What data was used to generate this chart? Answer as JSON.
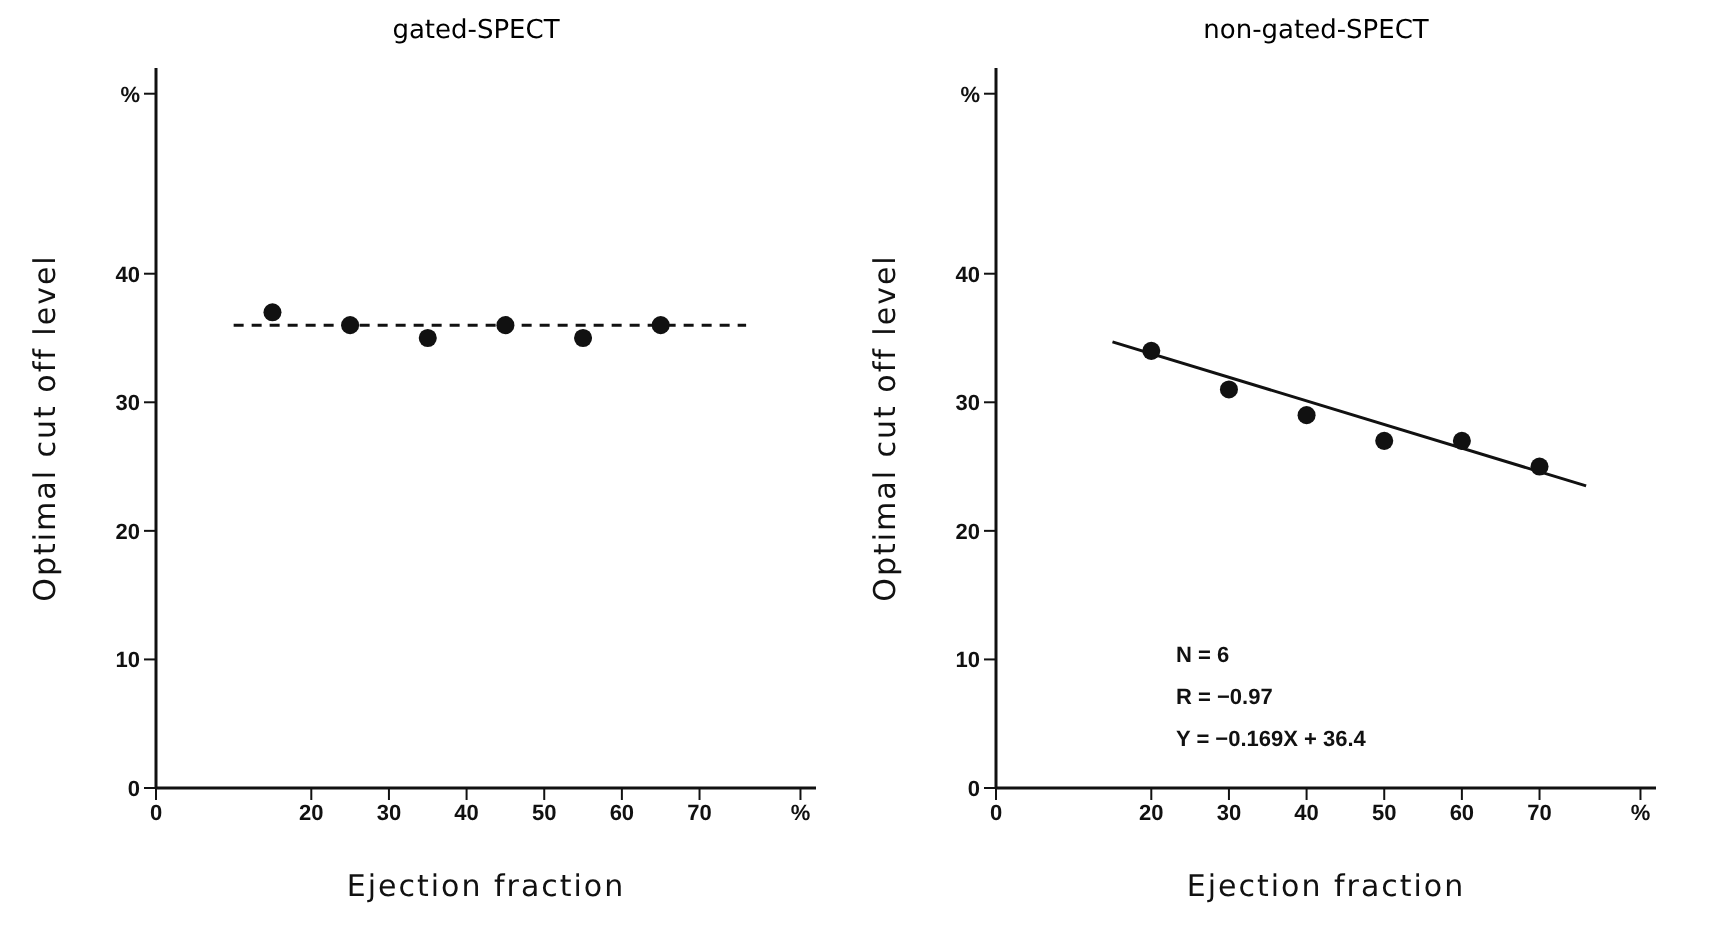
{
  "chart_data": [
    {
      "type": "scatter",
      "title": "gated-SPECT",
      "xlabel": "Ejection fraction",
      "ylabel": "Optimal cut off level",
      "xlim": [
        0,
        85
      ],
      "xticks": [
        0,
        20,
        30,
        40,
        50,
        60,
        70,
        {
          "value": 83,
          "label": "%"
        }
      ],
      "ylim": [
        0,
        56
      ],
      "yticks": [
        0,
        10,
        20,
        30,
        40,
        {
          "value": 54,
          "label": "%"
        }
      ],
      "grid": false,
      "series": [
        {
          "color": "#111111",
          "marker": "circle",
          "x": [
            15,
            25,
            35,
            45,
            55,
            65
          ],
          "values": [
            37,
            36,
            35,
            36,
            35,
            36
          ]
        },
        {
          "type": "line",
          "color": "#111111",
          "marker": "none",
          "line_style": "dashed",
          "x": [
            10,
            76
          ],
          "values": [
            36,
            36
          ]
        }
      ]
    },
    {
      "type": "scatter",
      "title": "non-gated-SPECT",
      "xlabel": "Ejection fraction",
      "ylabel": "Optimal cut off level",
      "xlim": [
        0,
        85
      ],
      "xticks": [
        0,
        20,
        30,
        40,
        50,
        60,
        70,
        {
          "value": 83,
          "label": "%"
        }
      ],
      "ylim": [
        0,
        56
      ],
      "yticks": [
        0,
        10,
        20,
        30,
        40,
        {
          "value": 54,
          "label": "%"
        }
      ],
      "grid": false,
      "annotations": [
        "N = 6",
        "R = −0.97",
        "Y = −0.169X + 36.4"
      ],
      "series": [
        {
          "color": "#111111",
          "marker": "circle",
          "x": [
            20,
            30,
            40,
            50,
            60,
            70
          ],
          "values": [
            34,
            31,
            29,
            27,
            27,
            25
          ]
        },
        {
          "type": "line",
          "color": "#111111",
          "marker": "none",
          "line_style": "solid",
          "x": [
            15,
            76
          ],
          "values": [
            34.7,
            23.5
          ]
        }
      ]
    }
  ]
}
